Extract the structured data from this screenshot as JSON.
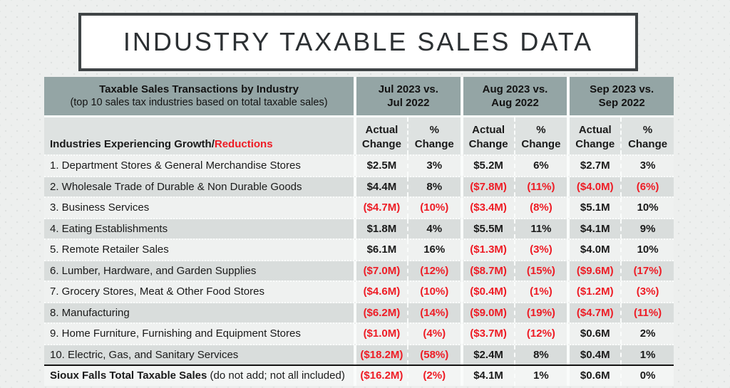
{
  "title": "INDUSTRY TAXABLE SALES DATA",
  "colors": {
    "header_teal": "#94A5A5",
    "negative_red": "#EE1C25",
    "row_light": "#EFF1F0",
    "row_dark": "#D9DDDC",
    "slide_background": "#EDEFEE",
    "title_border": "#3F4446"
  },
  "table": {
    "header": {
      "left_title": "Taxable Sales Transactions by Industry",
      "left_subtitle": "(top 10 sales tax industries based on total taxable sales)",
      "periods": [
        {
          "line1": "Jul 2023 vs.",
          "line2": "Jul 2022"
        },
        {
          "line1": "Aug 2023 vs.",
          "line2": "Aug 2022"
        },
        {
          "line1": "Sep 2023 vs.",
          "line2": "Sep 2022"
        }
      ]
    },
    "subheader": {
      "growth_black": "Industries Experiencing Growth/",
      "growth_red": "Reductions",
      "actual": {
        "line1": "Actual",
        "line2": "Change"
      },
      "pct": {
        "line1": "%",
        "line2": "Change"
      }
    }
  },
  "chart_data": {
    "type": "table",
    "title": "INDUSTRY TAXABLE SALES DATA",
    "period_columns": [
      "Jul 2023 vs. Jul 2022",
      "Aug 2023 vs. Aug 2022",
      "Sep 2023 vs. Sep 2022"
    ],
    "value_columns": [
      "Actual Change",
      "% Change"
    ],
    "rows": [
      {
        "industry": "1. Department Stores & General Merchandise Stores",
        "values": [
          "$2.5M",
          "3%",
          "$5.2M",
          "6%",
          "$2.7M",
          "3%"
        ]
      },
      {
        "industry": "2. Wholesale Trade of Durable & Non Durable Goods",
        "values": [
          "$4.4M",
          "8%",
          "($7.8M)",
          "(11%)",
          "($4.0M)",
          "(6%)"
        ]
      },
      {
        "industry": "3. Business Services",
        "values": [
          "($4.7M)",
          "(10%)",
          "($3.4M)",
          "(8%)",
          "$5.1M",
          "10%"
        ]
      },
      {
        "industry": "4. Eating Establishments",
        "values": [
          "$1.8M",
          "4%",
          "$5.5M",
          "11%",
          "$4.1M",
          "9%"
        ]
      },
      {
        "industry": "5. Remote Retailer Sales",
        "values": [
          "$6.1M",
          "16%",
          "($1.3M)",
          "(3%)",
          "$4.0M",
          "10%"
        ]
      },
      {
        "industry": "6. Lumber, Hardware, and Garden Supplies",
        "values": [
          "($7.0M)",
          "(12%)",
          "($8.7M)",
          "(15%)",
          "($9.6M)",
          "(17%)"
        ]
      },
      {
        "industry": "7. Grocery Stores, Meat & Other Food Stores",
        "values": [
          "($4.6M)",
          "(10%)",
          "($0.4M)",
          "(1%)",
          "($1.2M)",
          "(3%)"
        ]
      },
      {
        "industry": "8. Manufacturing",
        "values": [
          "($6.2M)",
          "(14%)",
          "($9.0M)",
          "(19%)",
          "($4.7M)",
          "(11%)"
        ]
      },
      {
        "industry": "9. Home Furniture, Furnishing and Equipment Stores",
        "values": [
          "($1.0M)",
          "(4%)",
          "($3.7M)",
          "(12%)",
          "$0.6M",
          "2%"
        ]
      },
      {
        "industry": "10. Electric, Gas, and Sanitary Services",
        "values": [
          "($18.2M)",
          "(58%)",
          "$2.4M",
          "8%",
          "$0.4M",
          "1%"
        ]
      }
    ],
    "total": {
      "industry": "Sioux Falls Total Taxable Sales",
      "note": " (do not add; not all included)",
      "values": [
        "($16.2M)",
        "(2%)",
        "$4.1M",
        "1%",
        "$0.6M",
        "0%"
      ]
    }
  }
}
